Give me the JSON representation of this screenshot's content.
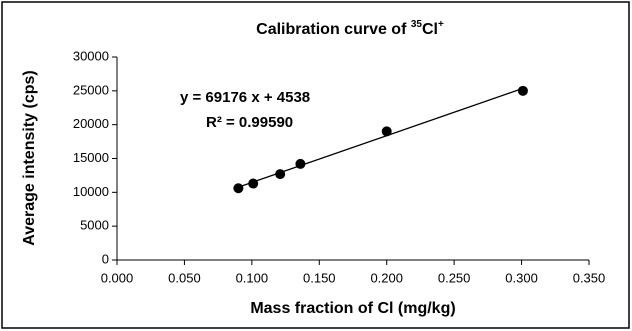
{
  "chart_data": {
    "type": "scatter",
    "title_parts": [
      {
        "text": "Calibration curve of "
      },
      {
        "text": "35",
        "sup": true
      },
      {
        "text": "Cl"
      },
      {
        "text": "+",
        "sup": true
      }
    ],
    "x_label": "Mass fraction of Cl (mg/kg)",
    "y_label": "Average intensity (cps)",
    "x": [
      0.09,
      0.101,
      0.121,
      0.136,
      0.2,
      0.301
    ],
    "values": [
      10600,
      11300,
      12700,
      14200,
      19000,
      25000
    ],
    "color": "#000000",
    "trendline": {
      "slope": 69176,
      "intercept": 4538,
      "equation": "y = 69176 x + 4538",
      "r2": "R² = 0.99590"
    },
    "xlim": [
      0,
      0.35
    ],
    "xticks": [
      {
        "value": 0,
        "label": "0.000"
      },
      {
        "value": 0.05,
        "label": "0.050"
      },
      {
        "value": 0.1,
        "label": "0.100"
      },
      {
        "value": 0.15,
        "label": "0.150"
      },
      {
        "value": 0.2,
        "label": "0.200"
      },
      {
        "value": 0.25,
        "label": "0.250"
      },
      {
        "value": 0.3,
        "label": "0.300"
      },
      {
        "value": 0.35,
        "label": "0.350"
      }
    ],
    "ylim": [
      0,
      30000
    ],
    "yticks": [
      0,
      5000,
      10000,
      15000,
      20000,
      25000,
      30000
    ],
    "grid": false
  }
}
